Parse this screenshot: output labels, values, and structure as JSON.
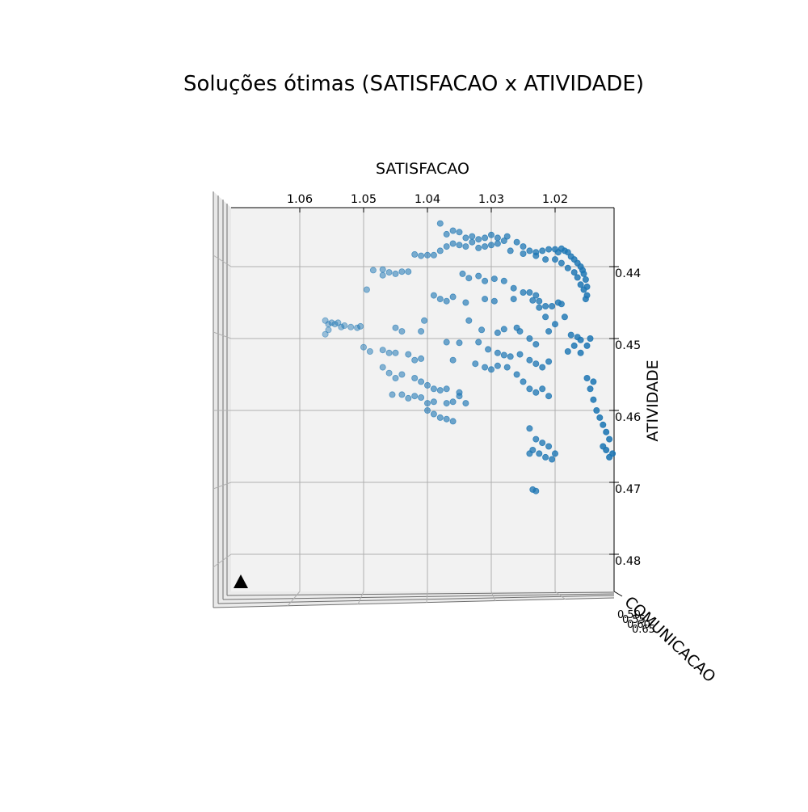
{
  "chart_data": {
    "type": "scatter",
    "projection": "3d",
    "title": "Soluções ótimas (SATISFACAO x ATIVIDADE)",
    "xlabel": "SATISFACAO",
    "ylabel": "ATIVIDADE",
    "zlabel": "COMUNICACAO",
    "x_ticks": [
      "1.06",
      "1.05",
      "1.04",
      "1.03",
      "1.02"
    ],
    "y_ticks": [
      "0.44",
      "0.45",
      "0.46",
      "0.47",
      "0.48"
    ],
    "z_ticks": [
      "0.50",
      "0.55",
      "0.60",
      "0.65"
    ],
    "x_range_reversed": [
      1.0667,
      1.0066
    ],
    "y_range_reversed": [
      0.4317,
      0.4876
    ],
    "grid": true,
    "point_color": "#1f77b4",
    "marker_color": "#000000",
    "series": [
      {
        "points": [
          [
            1.038,
            0.434
          ],
          [
            1.037,
            0.4355
          ],
          [
            1.036,
            0.435
          ],
          [
            1.035,
            0.4352
          ],
          [
            1.034,
            0.436
          ],
          [
            1.033,
            0.4358
          ],
          [
            1.032,
            0.4362
          ],
          [
            1.031,
            0.436
          ],
          [
            1.03,
            0.4356
          ],
          [
            1.029,
            0.436
          ],
          [
            1.028,
            0.4364
          ],
          [
            1.0275,
            0.4358
          ],
          [
            1.026,
            0.4366
          ],
          [
            1.025,
            0.4372
          ],
          [
            1.024,
            0.4378
          ],
          [
            1.023,
            0.438
          ],
          [
            1.022,
            0.4378
          ],
          [
            1.021,
            0.4376
          ],
          [
            1.02,
            0.4376
          ],
          [
            1.0195,
            0.438
          ],
          [
            1.019,
            0.4375
          ],
          [
            1.0185,
            0.4378
          ],
          [
            1.018,
            0.438
          ],
          [
            1.0175,
            0.4386
          ],
          [
            1.017,
            0.439
          ],
          [
            1.0165,
            0.4395
          ],
          [
            1.016,
            0.44
          ],
          [
            1.0157,
            0.4405
          ],
          [
            1.0155,
            0.441
          ],
          [
            1.0152,
            0.4418
          ],
          [
            1.015,
            0.4428
          ],
          [
            1.015,
            0.444
          ],
          [
            1.042,
            0.4383
          ],
          [
            1.041,
            0.4385
          ],
          [
            1.04,
            0.4384
          ],
          [
            1.039,
            0.4384
          ],
          [
            1.038,
            0.4378
          ],
          [
            1.037,
            0.4372
          ],
          [
            1.036,
            0.4368
          ],
          [
            1.035,
            0.437
          ],
          [
            1.034,
            0.4372
          ],
          [
            1.033,
            0.4366
          ],
          [
            1.032,
            0.4374
          ],
          [
            1.031,
            0.4372
          ],
          [
            1.03,
            0.437
          ],
          [
            1.029,
            0.4368
          ],
          [
            1.027,
            0.4378
          ],
          [
            1.025,
            0.4382
          ],
          [
            1.023,
            0.4385
          ],
          [
            1.0215,
            0.439
          ],
          [
            1.02,
            0.439
          ],
          [
            1.019,
            0.4395
          ],
          [
            1.018,
            0.4402
          ],
          [
            1.017,
            0.4408
          ],
          [
            1.0165,
            0.4415
          ],
          [
            1.016,
            0.4425
          ],
          [
            1.0155,
            0.4432
          ],
          [
            1.0152,
            0.4445
          ],
          [
            1.0485,
            0.4405
          ],
          [
            1.047,
            0.4404
          ],
          [
            1.046,
            0.4408
          ],
          [
            1.045,
            0.441
          ],
          [
            1.044,
            0.4407
          ],
          [
            1.043,
            0.4407
          ],
          [
            1.047,
            0.4412
          ],
          [
            1.0495,
            0.4432
          ],
          [
            1.0345,
            0.441
          ],
          [
            1.0335,
            0.4416
          ],
          [
            1.032,
            0.4413
          ],
          [
            1.031,
            0.442
          ],
          [
            1.0295,
            0.4417
          ],
          [
            1.028,
            0.442
          ],
          [
            1.0265,
            0.443
          ],
          [
            1.025,
            0.4436
          ],
          [
            1.024,
            0.4436
          ],
          [
            1.023,
            0.444
          ],
          [
            1.0225,
            0.4448
          ],
          [
            1.0215,
            0.4455
          ],
          [
            1.0205,
            0.4455
          ],
          [
            1.0195,
            0.445
          ],
          [
            1.019,
            0.4452
          ],
          [
            1.0185,
            0.447
          ],
          [
            1.039,
            0.444
          ],
          [
            1.038,
            0.4445
          ],
          [
            1.037,
            0.4448
          ],
          [
            1.036,
            0.4442
          ],
          [
            1.034,
            0.445
          ],
          [
            1.031,
            0.4445
          ],
          [
            1.0295,
            0.4448
          ],
          [
            1.0265,
            0.4445
          ],
          [
            1.0235,
            0.4447
          ],
          [
            1.0225,
            0.4457
          ],
          [
            1.0215,
            0.447
          ],
          [
            1.02,
            0.448
          ],
          [
            1.056,
            0.4475
          ],
          [
            1.0555,
            0.448
          ],
          [
            1.055,
            0.4478
          ],
          [
            1.0545,
            0.448
          ],
          [
            1.054,
            0.4478
          ],
          [
            1.0535,
            0.4484
          ],
          [
            1.053,
            0.4482
          ],
          [
            1.052,
            0.4484
          ],
          [
            1.051,
            0.4485
          ],
          [
            1.0505,
            0.4483
          ],
          [
            1.0555,
            0.4488
          ],
          [
            1.056,
            0.4494
          ],
          [
            1.045,
            0.4485
          ],
          [
            1.044,
            0.449
          ],
          [
            1.041,
            0.449
          ],
          [
            1.0405,
            0.4475
          ],
          [
            1.0335,
            0.4475
          ],
          [
            1.0315,
            0.4488
          ],
          [
            1.029,
            0.4492
          ],
          [
            1.028,
            0.4487
          ],
          [
            1.026,
            0.4485
          ],
          [
            1.0255,
            0.449
          ],
          [
            1.024,
            0.45
          ],
          [
            1.023,
            0.4508
          ],
          [
            1.021,
            0.449
          ],
          [
            1.0175,
            0.4495
          ],
          [
            1.0165,
            0.4498
          ],
          [
            1.016,
            0.4502
          ],
          [
            1.017,
            0.451
          ],
          [
            1.016,
            0.452
          ],
          [
            1.015,
            0.451
          ],
          [
            1.0145,
            0.45
          ],
          [
            1.018,
            0.4518
          ],
          [
            1.037,
            0.4505
          ],
          [
            1.035,
            0.4506
          ],
          [
            1.032,
            0.4505
          ],
          [
            1.0305,
            0.4515
          ],
          [
            1.029,
            0.452
          ],
          [
            1.028,
            0.4523
          ],
          [
            1.027,
            0.4525
          ],
          [
            1.0255,
            0.4522
          ],
          [
            1.024,
            0.453
          ],
          [
            1.023,
            0.4535
          ],
          [
            1.022,
            0.454
          ],
          [
            1.021,
            0.4532
          ],
          [
            1.05,
            0.4512
          ],
          [
            1.049,
            0.4518
          ],
          [
            1.047,
            0.4516
          ],
          [
            1.046,
            0.452
          ],
          [
            1.045,
            0.452
          ],
          [
            1.043,
            0.4522
          ],
          [
            1.042,
            0.453
          ],
          [
            1.041,
            0.4528
          ],
          [
            1.036,
            0.453
          ],
          [
            1.047,
            0.454
          ],
          [
            1.046,
            0.4548
          ],
          [
            1.045,
            0.4555
          ],
          [
            1.044,
            0.455
          ],
          [
            1.042,
            0.4555
          ],
          [
            1.041,
            0.456
          ],
          [
            1.04,
            0.4565
          ],
          [
            1.039,
            0.457
          ],
          [
            1.038,
            0.4572
          ],
          [
            1.037,
            0.457
          ],
          [
            1.035,
            0.4575
          ],
          [
            1.0325,
            0.4535
          ],
          [
            1.031,
            0.454
          ],
          [
            1.03,
            0.4543
          ],
          [
            1.029,
            0.4538
          ],
          [
            1.0275,
            0.454
          ],
          [
            1.026,
            0.455
          ],
          [
            1.025,
            0.456
          ],
          [
            1.024,
            0.457
          ],
          [
            1.023,
            0.4575
          ],
          [
            1.022,
            0.457
          ],
          [
            1.021,
            0.458
          ],
          [
            1.0455,
            0.4578
          ],
          [
            1.044,
            0.4578
          ],
          [
            1.043,
            0.4583
          ],
          [
            1.042,
            0.458
          ],
          [
            1.041,
            0.4582
          ],
          [
            1.04,
            0.459
          ],
          [
            1.039,
            0.4588
          ],
          [
            1.037,
            0.459
          ],
          [
            1.036,
            0.4588
          ],
          [
            1.035,
            0.458
          ],
          [
            1.034,
            0.459
          ],
          [
            1.04,
            0.46
          ],
          [
            1.039,
            0.4605
          ],
          [
            1.038,
            0.461
          ],
          [
            1.037,
            0.4612
          ],
          [
            1.036,
            0.4615
          ],
          [
            1.015,
            0.4555
          ],
          [
            1.014,
            0.456
          ],
          [
            1.0145,
            0.457
          ],
          [
            1.014,
            0.4585
          ],
          [
            1.0135,
            0.46
          ],
          [
            1.013,
            0.461
          ],
          [
            1.0125,
            0.462
          ],
          [
            1.012,
            0.463
          ],
          [
            1.0115,
            0.464
          ],
          [
            1.0125,
            0.465
          ],
          [
            1.012,
            0.4655
          ],
          [
            1.011,
            0.466
          ],
          [
            1.0115,
            0.4665
          ],
          [
            1.024,
            0.4625
          ],
          [
            1.023,
            0.464
          ],
          [
            1.022,
            0.4645
          ],
          [
            1.021,
            0.465
          ],
          [
            1.02,
            0.466
          ],
          [
            1.0235,
            0.4655
          ],
          [
            1.0225,
            0.466
          ],
          [
            1.0215,
            0.4665
          ],
          [
            1.0205,
            0.4668
          ],
          [
            1.024,
            0.466
          ],
          [
            1.0235,
            0.471
          ],
          [
            1.023,
            0.4712
          ]
        ]
      }
    ]
  }
}
